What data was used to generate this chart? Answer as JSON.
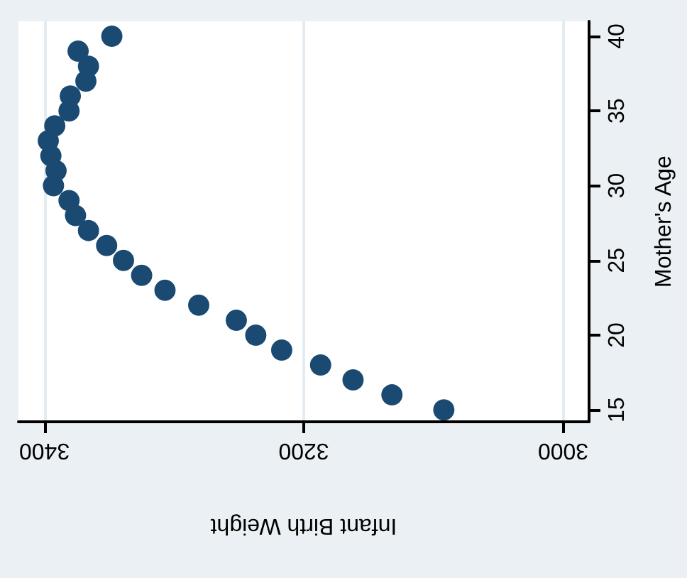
{
  "chart_data": {
    "type": "scatter",
    "xlabel": "Infant Birth Weight",
    "ylabel": "Mother's Age",
    "x": [
      3092,
      3132,
      3162,
      3187,
      3217,
      3237,
      3252,
      3281,
      3307,
      3325,
      3339,
      3352,
      3366,
      3376,
      3381,
      3393,
      3391,
      3395,
      3397,
      3392,
      3381,
      3380,
      3368,
      3366,
      3374,
      3348
    ],
    "series": [
      {
        "color": "#1a4a72",
        "values": [
          15,
          16,
          17,
          18,
          19,
          20,
          21,
          22,
          23,
          24,
          25,
          26,
          27,
          28,
          29,
          30,
          31,
          32,
          33,
          34,
          35,
          36,
          37,
          38,
          39,
          40
        ]
      }
    ],
    "xlim": [
      3420,
      2980
    ],
    "xticks": [
      3400,
      3200,
      3000
    ],
    "ylim": [
      14.2,
      41
    ],
    "yticks": [
      15,
      20,
      25,
      30,
      35,
      40
    ],
    "grid": "x",
    "marker": "circle"
  }
}
